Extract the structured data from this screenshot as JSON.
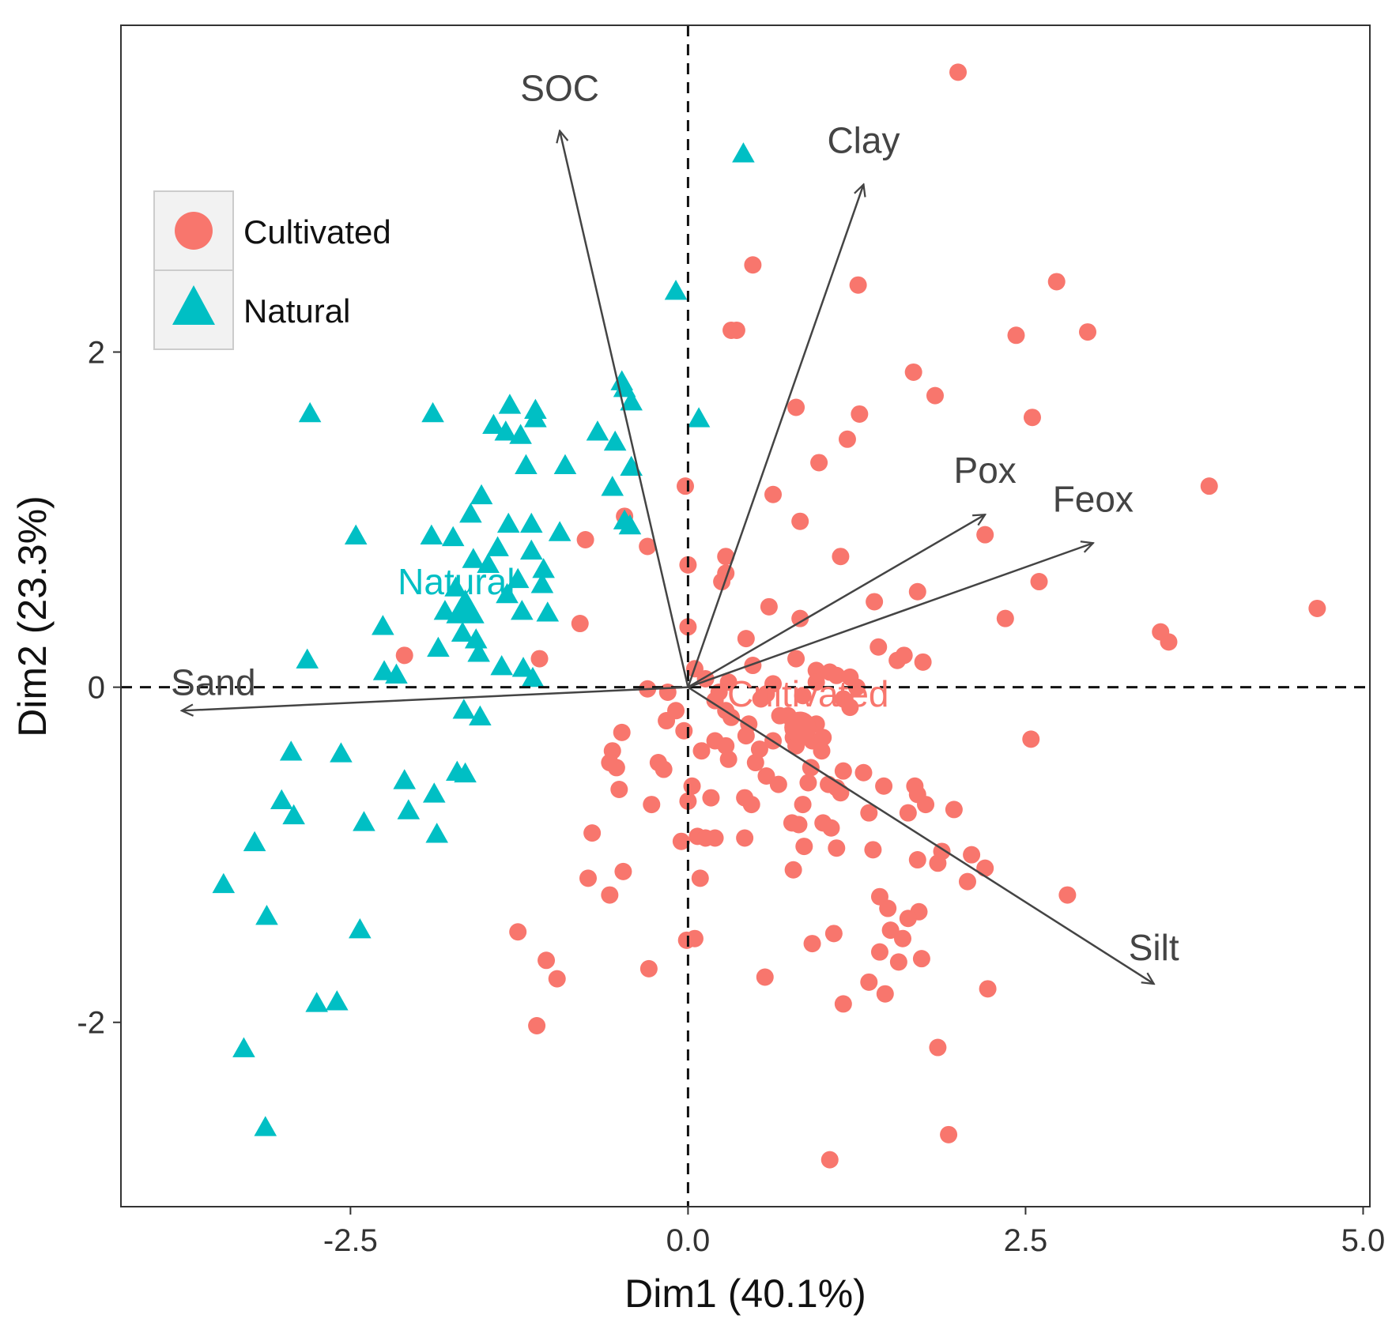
{
  "chart_data": {
    "type": "scatter",
    "title": "",
    "xlabel": "Dim1 (40.1%)",
    "ylabel": "Dim2 (23.3%)",
    "xlim": [
      -4.2,
      5.05
    ],
    "ylim": [
      -3.1,
      3.95
    ],
    "xticks": [
      -2.5,
      0.0,
      2.5,
      5.0
    ],
    "xtick_labels": [
      "-2.5",
      "0.0",
      "2.5",
      "5.0"
    ],
    "yticks": [
      -2,
      0,
      2
    ],
    "ytick_labels": [
      "-2",
      "0",
      "2"
    ],
    "grid": false,
    "reference_lines": {
      "x": 0,
      "y": 0,
      "style": "dashed"
    },
    "legend": {
      "placement": "top-left",
      "entries": [
        "Cultivated",
        "Natural"
      ]
    },
    "colors": {
      "Cultivated": "#F8766D",
      "Natural": "#00BFC4",
      "arrow": "#444444"
    },
    "centroids": [
      {
        "label": "Cultivated",
        "x": 0.83,
        "y": -0.24
      },
      {
        "label": "Natural",
        "x": -1.65,
        "y": 0.48
      }
    ],
    "loadings": [
      {
        "label": "SOC",
        "x": -0.95,
        "y": 3.32
      },
      {
        "label": "Clay",
        "x": 1.3,
        "y": 3.0
      },
      {
        "label": "Pox",
        "x": 2.2,
        "y": 1.03
      },
      {
        "label": "Feox",
        "x": 3.0,
        "y": 0.86
      },
      {
        "label": "Sand",
        "x": -3.75,
        "y": -0.14
      },
      {
        "label": "Silt",
        "x": 3.45,
        "y": -1.77
      }
    ],
    "series": [
      {
        "name": "Cultivated",
        "marker": "circle",
        "points": [
          [
            2.0,
            3.67
          ],
          [
            0.48,
            2.52
          ],
          [
            1.26,
            2.4
          ],
          [
            2.73,
            2.42
          ],
          [
            0.32,
            2.13
          ],
          [
            0.36,
            2.13
          ],
          [
            2.43,
            2.1
          ],
          [
            2.96,
            2.12
          ],
          [
            1.67,
            1.88
          ],
          [
            1.83,
            1.74
          ],
          [
            0.8,
            1.67
          ],
          [
            1.27,
            1.63
          ],
          [
            2.55,
            1.61
          ],
          [
            1.18,
            1.48
          ],
          [
            0.97,
            1.34
          ],
          [
            3.86,
            1.2
          ],
          [
            -0.02,
            1.2
          ],
          [
            0.63,
            1.15
          ],
          [
            -0.47,
            1.02
          ],
          [
            0.83,
            0.99
          ],
          [
            -0.76,
            0.88
          ],
          [
            2.2,
            0.91
          ],
          [
            -0.3,
            0.84
          ],
          [
            1.13,
            0.78
          ],
          [
            0.28,
            0.78
          ],
          [
            0.0,
            0.73
          ],
          [
            0.28,
            0.68
          ],
          [
            0.25,
            0.63
          ],
          [
            2.6,
            0.63
          ],
          [
            1.7,
            0.57
          ],
          [
            1.38,
            0.51
          ],
          [
            0.6,
            0.48
          ],
          [
            4.66,
            0.47
          ],
          [
            0.83,
            0.41
          ],
          [
            -0.8,
            0.38
          ],
          [
            2.35,
            0.41
          ],
          [
            0.0,
            0.36
          ],
          [
            3.5,
            0.33
          ],
          [
            3.56,
            0.27
          ],
          [
            0.43,
            0.29
          ],
          [
            1.41,
            0.24
          ],
          [
            1.55,
            0.16
          ],
          [
            1.6,
            0.19
          ],
          [
            1.74,
            0.15
          ],
          [
            -1.1,
            0.17
          ],
          [
            -2.1,
            0.19
          ],
          [
            0.8,
            0.17
          ],
          [
            0.05,
            0.11
          ],
          [
            0.48,
            0.13
          ],
          [
            0.95,
            0.1
          ],
          [
            1.05,
            0.09
          ],
          [
            1.1,
            0.07
          ],
          [
            1.2,
            0.06
          ],
          [
            0.13,
            0.05
          ],
          [
            0.3,
            0.03
          ],
          [
            0.63,
            0.02
          ],
          [
            0.95,
            0.03
          ],
          [
            1.25,
            0.0
          ],
          [
            0.23,
            -0.03
          ],
          [
            0.58,
            -0.04
          ],
          [
            0.85,
            -0.05
          ],
          [
            1.15,
            -0.07
          ],
          [
            -0.3,
            -0.01
          ],
          [
            -0.15,
            -0.03
          ],
          [
            0.2,
            -0.08
          ],
          [
            0.54,
            -0.07
          ],
          [
            -0.09,
            -0.14
          ],
          [
            0.28,
            -0.14
          ],
          [
            0.68,
            -0.17
          ],
          [
            0.74,
            -0.17
          ],
          [
            1.2,
            -0.12
          ],
          [
            -0.16,
            -0.2
          ],
          [
            0.32,
            -0.18
          ],
          [
            0.45,
            -0.22
          ],
          [
            0.82,
            -0.26
          ],
          [
            0.88,
            -0.28
          ],
          [
            0.95,
            -0.22
          ],
          [
            0.78,
            -0.3
          ],
          [
            0.92,
            -0.32
          ],
          [
            -0.03,
            -0.26
          ],
          [
            0.43,
            -0.29
          ],
          [
            0.63,
            -0.32
          ],
          [
            1.0,
            -0.3
          ],
          [
            0.8,
            -0.35
          ],
          [
            2.54,
            -0.31
          ],
          [
            -0.49,
            -0.27
          ],
          [
            -0.56,
            -0.38
          ],
          [
            0.1,
            -0.38
          ],
          [
            0.2,
            -0.32
          ],
          [
            0.28,
            -0.35
          ],
          [
            0.3,
            -0.43
          ],
          [
            0.5,
            -0.45
          ],
          [
            0.53,
            -0.37
          ],
          [
            0.99,
            -0.38
          ],
          [
            -0.22,
            -0.45
          ],
          [
            -0.18,
            -0.49
          ],
          [
            -0.58,
            -0.45
          ],
          [
            -0.53,
            -0.48
          ],
          [
            0.91,
            -0.48
          ],
          [
            1.15,
            -0.5
          ],
          [
            1.3,
            -0.51
          ],
          [
            0.58,
            -0.53
          ],
          [
            0.67,
            -0.58
          ],
          [
            0.89,
            -0.57
          ],
          [
            1.04,
            -0.58
          ],
          [
            1.1,
            -0.6
          ],
          [
            1.13,
            -0.63
          ],
          [
            1.45,
            -0.59
          ],
          [
            1.68,
            -0.59
          ],
          [
            1.7,
            -0.64
          ],
          [
            -0.51,
            -0.61
          ],
          [
            0.03,
            -0.59
          ],
          [
            0.0,
            -0.68
          ],
          [
            0.17,
            -0.66
          ],
          [
            0.42,
            -0.66
          ],
          [
            -0.27,
            -0.7
          ],
          [
            0.47,
            -0.7
          ],
          [
            0.85,
            -0.7
          ],
          [
            1.34,
            -0.75
          ],
          [
            1.63,
            -0.75
          ],
          [
            1.76,
            -0.7
          ],
          [
            1.97,
            -0.73
          ],
          [
            0.77,
            -0.81
          ],
          [
            0.82,
            -0.82
          ],
          [
            1.0,
            -0.81
          ],
          [
            1.06,
            -0.84
          ],
          [
            -0.71,
            -0.87
          ],
          [
            0.07,
            -0.89
          ],
          [
            -0.05,
            -0.92
          ],
          [
            0.13,
            -0.9
          ],
          [
            0.2,
            -0.9
          ],
          [
            0.42,
            -0.9
          ],
          [
            0.86,
            -0.95
          ],
          [
            1.1,
            -0.96
          ],
          [
            1.37,
            -0.97
          ],
          [
            1.88,
            -0.98
          ],
          [
            2.1,
            -1.0
          ],
          [
            1.7,
            -1.03
          ],
          [
            1.85,
            -1.05
          ],
          [
            2.2,
            -1.08
          ],
          [
            0.78,
            -1.09
          ],
          [
            -0.48,
            -1.1
          ],
          [
            -0.74,
            -1.14
          ],
          [
            0.09,
            -1.14
          ],
          [
            2.07,
            -1.16
          ],
          [
            -0.58,
            -1.24
          ],
          [
            1.42,
            -1.25
          ],
          [
            1.48,
            -1.32
          ],
          [
            2.81,
            -1.24
          ],
          [
            1.71,
            -1.34
          ],
          [
            1.63,
            -1.38
          ],
          [
            1.5,
            -1.45
          ],
          [
            1.59,
            -1.5
          ],
          [
            1.08,
            -1.47
          ],
          [
            -1.26,
            -1.46
          ],
          [
            -0.01,
            -1.51
          ],
          [
            0.05,
            -1.5
          ],
          [
            0.92,
            -1.53
          ],
          [
            1.42,
            -1.58
          ],
          [
            1.73,
            -1.62
          ],
          [
            1.56,
            -1.64
          ],
          [
            -1.05,
            -1.63
          ],
          [
            -0.29,
            -1.68
          ],
          [
            0.57,
            -1.73
          ],
          [
            -0.97,
            -1.74
          ],
          [
            1.34,
            -1.76
          ],
          [
            2.22,
            -1.8
          ],
          [
            1.46,
            -1.83
          ],
          [
            1.15,
            -1.89
          ],
          [
            -1.12,
            -2.02
          ],
          [
            1.85,
            -2.15
          ],
          [
            1.93,
            -2.67
          ],
          [
            1.05,
            -2.82
          ]
        ]
      },
      {
        "name": "Natural",
        "marker": "triangle",
        "points": [
          [
            0.41,
            3.19
          ],
          [
            -0.09,
            2.37
          ],
          [
            -2.8,
            1.64
          ],
          [
            -1.89,
            1.64
          ],
          [
            -1.32,
            1.69
          ],
          [
            -1.13,
            1.66
          ],
          [
            -1.44,
            1.57
          ],
          [
            -1.35,
            1.53
          ],
          [
            -1.24,
            1.51
          ],
          [
            -1.13,
            1.61
          ],
          [
            -0.49,
            1.83
          ],
          [
            -0.47,
            1.79
          ],
          [
            -0.42,
            1.71
          ],
          [
            0.08,
            1.61
          ],
          [
            -0.67,
            1.53
          ],
          [
            -0.54,
            1.47
          ],
          [
            -1.2,
            1.33
          ],
          [
            -0.91,
            1.33
          ],
          [
            -0.42,
            1.32
          ],
          [
            -0.56,
            1.2
          ],
          [
            -1.53,
            1.15
          ],
          [
            -1.61,
            1.04
          ],
          [
            -1.33,
            0.98
          ],
          [
            -1.16,
            0.98
          ],
          [
            -0.95,
            0.93
          ],
          [
            -0.47,
            1.0
          ],
          [
            -0.43,
            0.97
          ],
          [
            -2.46,
            0.91
          ],
          [
            -1.9,
            0.91
          ],
          [
            -1.74,
            0.9
          ],
          [
            -1.41,
            0.84
          ],
          [
            -1.16,
            0.82
          ],
          [
            -1.59,
            0.77
          ],
          [
            -1.48,
            0.74
          ],
          [
            -1.07,
            0.71
          ],
          [
            -1.26,
            0.65
          ],
          [
            -1.08,
            0.62
          ],
          [
            -1.72,
            0.6
          ],
          [
            -1.34,
            0.56
          ],
          [
            -1.23,
            0.46
          ],
          [
            -1.04,
            0.45
          ],
          [
            -1.8,
            0.46
          ],
          [
            -2.26,
            0.37
          ],
          [
            -1.67,
            0.33
          ],
          [
            -1.57,
            0.29
          ],
          [
            -1.85,
            0.24
          ],
          [
            -1.55,
            0.21
          ],
          [
            -2.82,
            0.17
          ],
          [
            -1.38,
            0.13
          ],
          [
            -1.22,
            0.12
          ],
          [
            -2.25,
            0.1
          ],
          [
            -2.16,
            0.08
          ],
          [
            -1.15,
            0.06
          ],
          [
            -1.66,
            -0.13
          ],
          [
            -1.54,
            -0.17
          ],
          [
            -2.94,
            -0.38
          ],
          [
            -2.57,
            -0.39
          ],
          [
            -1.71,
            -0.5
          ],
          [
            -1.65,
            -0.51
          ],
          [
            -2.1,
            -0.55
          ],
          [
            -1.88,
            -0.63
          ],
          [
            -3.01,
            -0.67
          ],
          [
            -2.92,
            -0.76
          ],
          [
            -2.07,
            -0.73
          ],
          [
            -2.4,
            -0.8
          ],
          [
            -1.86,
            -0.87
          ],
          [
            -3.21,
            -0.92
          ],
          [
            -3.44,
            -1.17
          ],
          [
            -3.12,
            -1.36
          ],
          [
            -2.43,
            -1.44
          ],
          [
            -2.75,
            -1.88
          ],
          [
            -2.6,
            -1.87
          ],
          [
            -3.29,
            -2.15
          ],
          [
            -3.13,
            -2.62
          ]
        ]
      }
    ]
  }
}
